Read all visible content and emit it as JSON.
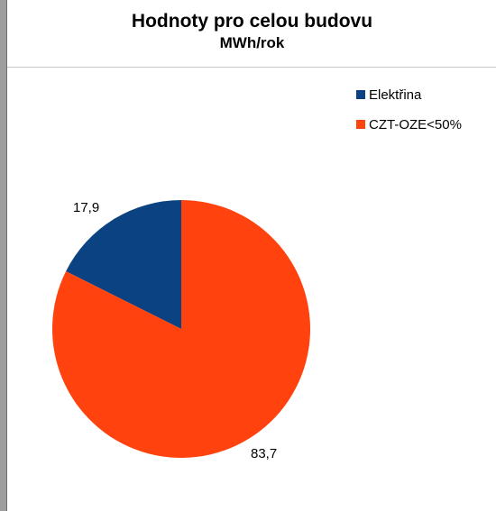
{
  "chart_data": {
    "type": "pie",
    "title": "Hodnoty pro celou budovu",
    "subtitle": "MWh/rok",
    "legend_position": "top-right",
    "categories": [
      "Elektřina",
      "CZT-OZE<50%"
    ],
    "values": [
      17.9,
      83.7
    ],
    "value_labels": [
      "17,9",
      "83,7"
    ],
    "colors": [
      "#0b4382",
      "#ff420e"
    ]
  }
}
